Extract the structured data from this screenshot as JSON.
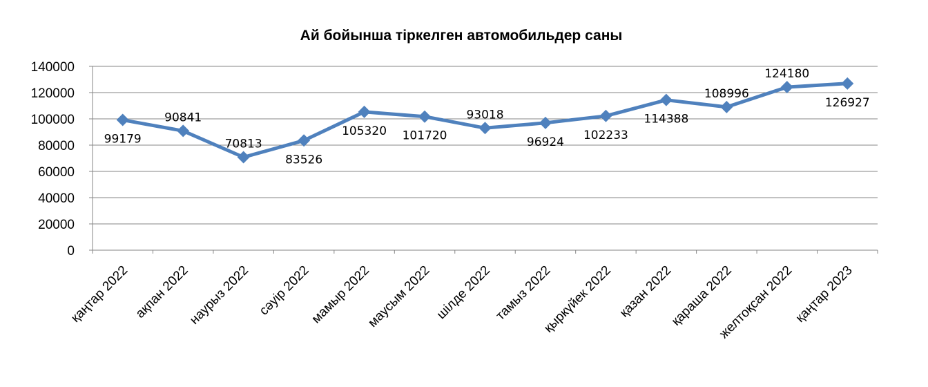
{
  "chart_data": {
    "type": "line",
    "title": "Ай бойынша тіркелген автомобильдер саны",
    "xlabel": "",
    "ylabel": "",
    "categories": [
      "қаңтар 2022",
      "ақпан 2022",
      "наурыз 2022",
      "сәуір 2022",
      "мамыр 2022",
      "маусым 2022",
      "шілде 2022",
      "тамыз 2022",
      "қыркүйек 2022",
      "қазан 2022",
      "қараша 2022",
      "желтоқсан 2022",
      "қаңтар 2023"
    ],
    "series": [
      {
        "values": [
          99179,
          90841,
          70813,
          83526,
          105320,
          101720,
          93018,
          96924,
          102233,
          114388,
          108996,
          124180,
          126927
        ],
        "color": "#4F81BD",
        "marker": "diamond"
      }
    ],
    "data_labels": [
      "99179",
      "90841",
      "70813",
      "83526",
      "105320",
      "101720",
      "93018",
      "96924",
      "102233",
      "114388",
      "108996",
      "124180",
      "126927"
    ],
    "ylim": [
      0,
      140000
    ],
    "yticks": [
      0,
      20000,
      40000,
      60000,
      80000,
      100000,
      120000,
      140000
    ],
    "ytick_labels": [
      "0",
      "20000",
      "40000",
      "60000",
      "80000",
      "100000",
      "120000",
      "140000"
    ],
    "grid": true,
    "legend": "none"
  }
}
